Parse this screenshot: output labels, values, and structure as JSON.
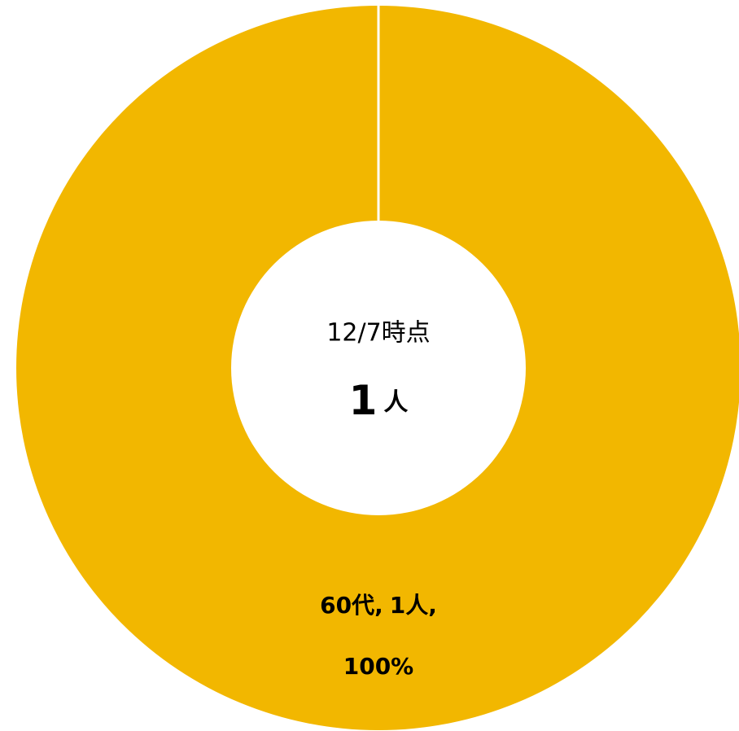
{
  "chart_data": {
    "type": "donut",
    "center_label": "12/7時点",
    "total": 1,
    "total_unit": "人",
    "categories": [
      "60代"
    ],
    "values": [
      1
    ],
    "value_labels": [
      "1人"
    ],
    "percents": [
      100
    ],
    "percent_labels": [
      "100%"
    ],
    "label_separator": ",",
    "colors": [
      "#F2B700"
    ]
  }
}
